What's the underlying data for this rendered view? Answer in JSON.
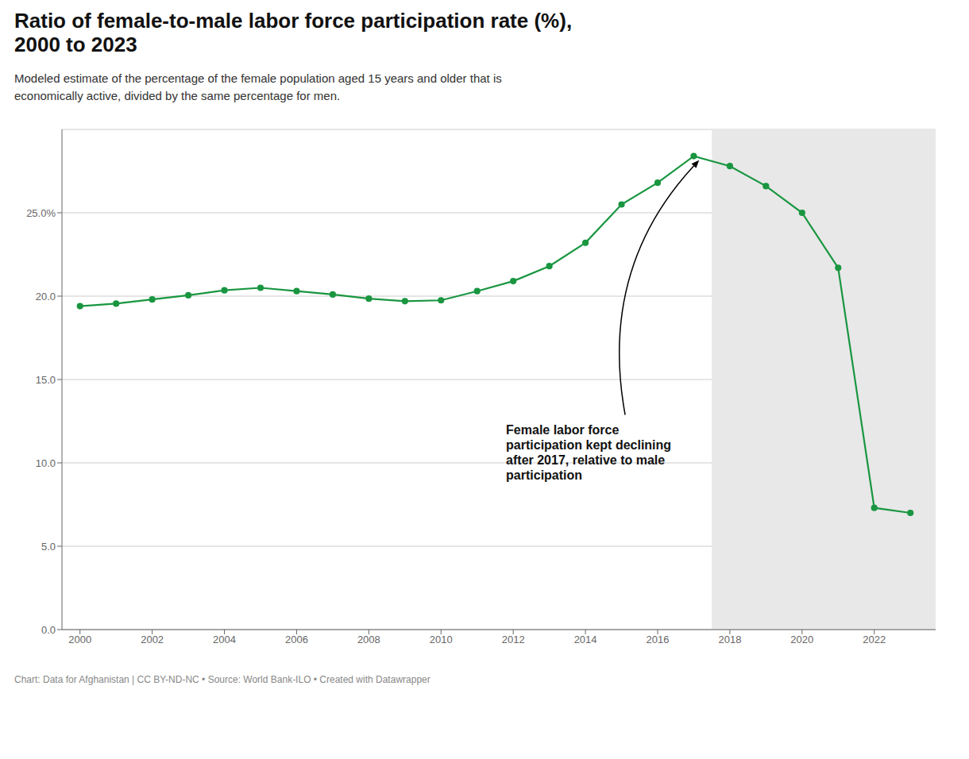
{
  "chart_data": {
    "type": "line",
    "title": "Ratio of female-to-male labor force participation rate (%),\n2000 to 2023",
    "subtitle": "Modeled estimate of the percentage of the female population aged 15 years and older that is\neconomically active, divided by the same percentage for men.",
    "footer": "Chart: Data for Afghanistan | CC BY-ND-NC • Source: World Bank-ILO • Created with Datawrapper",
    "x": [
      2000,
      2001,
      2002,
      2003,
      2004,
      2005,
      2006,
      2007,
      2008,
      2009,
      2010,
      2011,
      2012,
      2013,
      2014,
      2015,
      2016,
      2017,
      2018,
      2019,
      2020,
      2021,
      2022,
      2023
    ],
    "values": [
      19.4,
      19.55,
      19.8,
      20.05,
      20.35,
      20.5,
      20.3,
      20.1,
      19.85,
      19.7,
      19.75,
      20.3,
      20.9,
      21.8,
      23.2,
      25.5,
      26.8,
      28.4,
      27.8,
      26.6,
      25.0,
      21.7,
      7.3,
      7.0
    ],
    "color": "#1a9641",
    "marker": "circle",
    "xlim": [
      1999.5,
      2023.7
    ],
    "xticks": [
      2000,
      2002,
      2004,
      2006,
      2008,
      2010,
      2012,
      2014,
      2016,
      2018,
      2020,
      2022
    ],
    "ylim": [
      0,
      30
    ],
    "yticks": [
      {
        "value": 0,
        "label": "0.0"
      },
      {
        "value": 5,
        "label": "5.0"
      },
      {
        "value": 10,
        "label": "10.0"
      },
      {
        "value": 15,
        "label": "15.0"
      },
      {
        "value": 20,
        "label": "20.0"
      },
      {
        "value": 25,
        "label": "25.0%"
      }
    ],
    "grid": true,
    "annotations": [
      {
        "text": "Female labor force\nparticipation kept declining\nafter 2017, relative to male\nparticipation",
        "x": 2017.15,
        "y": 28.35,
        "text_x": 2011.8,
        "text_y": 12.5
      }
    ],
    "shaded_region": {
      "x": [
        2017.5,
        2023.7
      ],
      "color": "#e8e8e8"
    }
  }
}
